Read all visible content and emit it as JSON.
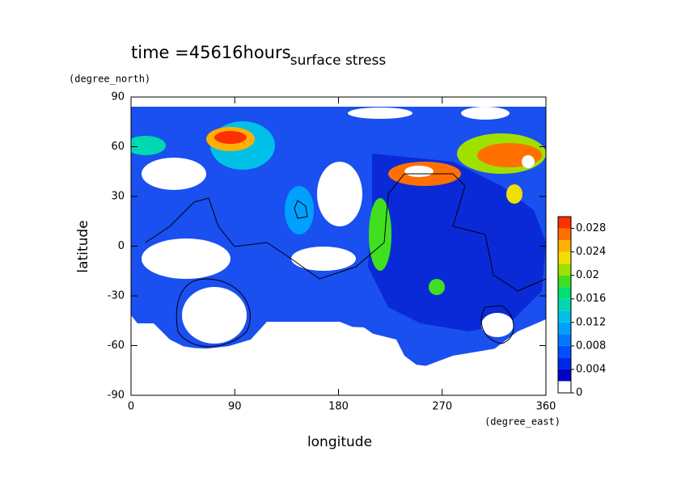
{
  "chart_data": {
    "type": "contour",
    "title": "surface stress",
    "subtitle": "time =45616hours",
    "x_label": "longitude",
    "x_units": "(degree_east)",
    "y_label": "latitude",
    "y_units": "(degree_north)",
    "xlim": [
      0,
      360
    ],
    "xticks": [
      0,
      90,
      180,
      270,
      360
    ],
    "ylim": [
      -90,
      90
    ],
    "yticks": [
      -90,
      -60,
      -30,
      0,
      30,
      60,
      90
    ],
    "colorbar": {
      "lim": [
        0,
        0.03
      ],
      "ticks": [
        0,
        0.004,
        0.008,
        0.012,
        0.016,
        0.02,
        0.024,
        0.028
      ],
      "levels": [
        0,
        0.002,
        0.004,
        0.006,
        0.008,
        0.01,
        0.012,
        0.014,
        0.016,
        0.018,
        0.02,
        0.022,
        0.024,
        0.026,
        0.028,
        0.03
      ],
      "colors": [
        "#ffffff",
        "#0000c8",
        "#0028e8",
        "#0050ff",
        "#0078ff",
        "#00a0ff",
        "#00c0e8",
        "#00d8b0",
        "#00e070",
        "#40e020",
        "#a0e000",
        "#f0e000",
        "#ffb000",
        "#ff7000",
        "#ff3000"
      ]
    }
  }
}
